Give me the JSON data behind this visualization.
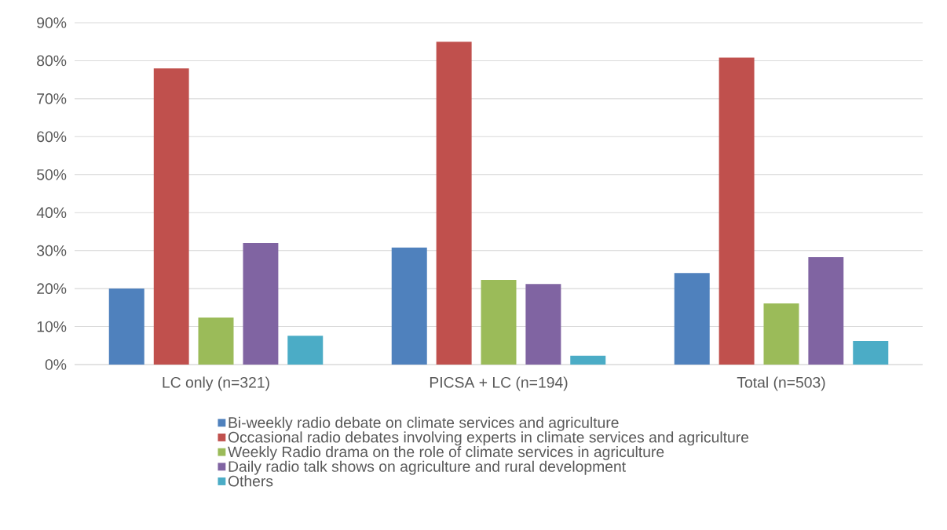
{
  "chart_data": {
    "type": "bar",
    "categories": [
      "LC only (n=321)",
      "PICSA + LC (n=194)",
      "Total  (n=503)"
    ],
    "series": [
      {
        "name": "Bi-weekly radio debate on climate services and agriculture",
        "color": "#4f81bd",
        "values": [
          20,
          30.8,
          24.1
        ]
      },
      {
        "name": "Occasional radio debates involving experts in climate services and agriculture",
        "color": "#c0504d",
        "values": [
          78,
          85,
          80.8
        ]
      },
      {
        "name": "Weekly Radio drama on the role of climate services in agriculture",
        "color": "#9bbb59",
        "values": [
          12.4,
          22.3,
          16.1
        ]
      },
      {
        "name": "Daily radio talk shows on agriculture and rural development",
        "color": "#8064a2",
        "values": [
          32,
          21.2,
          28.3
        ]
      },
      {
        "name": "Others",
        "color": "#4bacc6",
        "values": [
          7.6,
          2.3,
          6.2
        ]
      }
    ],
    "ylim": [
      0,
      90
    ],
    "yticks": [
      {
        "value": 0,
        "label": "0%"
      },
      {
        "value": 10,
        "label": "10%"
      },
      {
        "value": 20,
        "label": "20%"
      },
      {
        "value": 30,
        "label": "30%"
      },
      {
        "value": 40,
        "label": "40%"
      },
      {
        "value": 50,
        "label": "50%"
      },
      {
        "value": 60,
        "label": "60%"
      },
      {
        "value": 70,
        "label": "70%"
      },
      {
        "value": 80,
        "label": "80%"
      },
      {
        "value": 90,
        "label": "90%"
      }
    ],
    "grid": "y",
    "legend": "bottom"
  }
}
